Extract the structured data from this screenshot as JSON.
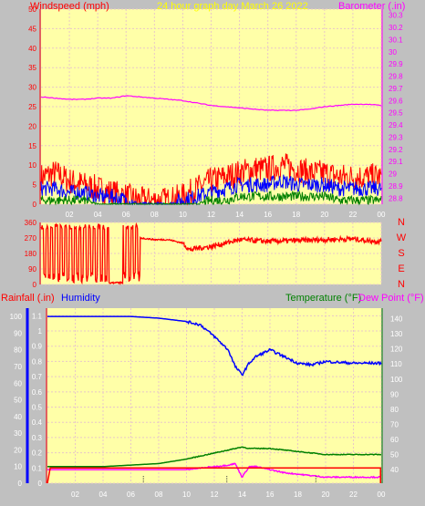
{
  "header": {
    "left_label": "Windspeed (mph)",
    "center_label": "24 hour graph day   March 26 2022",
    "right_label": "Barometer (.in)"
  },
  "colors": {
    "background": "#c0c0c0",
    "plot_bg": "#ffffa8",
    "grid": "#e8c8c8",
    "wind_speed": "#ff0000",
    "wind_avg": "#0000ff",
    "wind_min": "#008000",
    "barometer": "#ff00ff",
    "direction": "#ff0000",
    "humidity": "#0000ff",
    "temperature": "#008000",
    "dewpoint": "#ff00ff",
    "rainfall": "#ff0000",
    "title_yellow": "#ffff00",
    "axis_labels": "#ffffff"
  },
  "x_ticks": [
    "02",
    "04",
    "06",
    "08",
    "10",
    "12",
    "14",
    "16",
    "18",
    "20",
    "22",
    "00"
  ],
  "direction_letters": [
    "N",
    "W",
    "S",
    "E",
    "N"
  ],
  "bottom_header": {
    "rainfall_label": "Rainfall (.in)",
    "humidity_label": "Humidity",
    "temperature_label": "Temperature (°F)",
    "dewpoint_label": "Dew Point (°F)"
  },
  "chart_data": [
    {
      "type": "line",
      "id": "wind-barometer",
      "xlabel": "",
      "ylabel_left": "Windspeed (mph)",
      "ylabel_right": "Barometer (.in)",
      "y_left_ticks": [
        "0",
        "5",
        "10",
        "15",
        "20",
        "25",
        "30",
        "35",
        "40",
        "45",
        "50"
      ],
      "y_left_lim": [
        0,
        50
      ],
      "y_right_ticks": [
        "28.8",
        "28.9",
        "29",
        "29.1",
        "29.2",
        "29.3",
        "29.4",
        "29.5",
        "29.6",
        "29.7",
        "29.8",
        "29.9",
        "30",
        "30.1",
        "30.2",
        "30.3"
      ],
      "y_right_lim": [
        28.75,
        30.35
      ],
      "x_hours": [
        0,
        1,
        2,
        3,
        4,
        5,
        6,
        7,
        8,
        9,
        10,
        11,
        12,
        13,
        14,
        15,
        16,
        17,
        18,
        19,
        20,
        21,
        22,
        23,
        24
      ],
      "series": [
        {
          "name": "Windspeed",
          "axis": "left",
          "values": [
            7,
            8,
            6,
            5,
            4,
            3,
            2,
            1,
            1,
            1,
            2,
            4,
            6,
            7,
            8,
            9,
            9,
            10,
            9,
            8,
            8,
            7,
            7,
            7,
            7
          ]
        },
        {
          "name": "Wind average",
          "axis": "left",
          "values": [
            4,
            4,
            3,
            3,
            2,
            2,
            1,
            0,
            0,
            0,
            1,
            2,
            3,
            4,
            5,
            5,
            5,
            6,
            5,
            5,
            5,
            4,
            4,
            4,
            4
          ]
        },
        {
          "name": "Wind minimum",
          "axis": "left",
          "values": [
            1,
            1,
            1,
            1,
            0,
            0,
            0,
            0,
            0,
            0,
            0,
            0,
            1,
            1,
            2,
            2,
            2,
            2,
            2,
            2,
            2,
            1,
            1,
            1,
            1
          ]
        },
        {
          "name": "Barometer",
          "axis": "right",
          "values": [
            29.63,
            29.62,
            29.61,
            29.61,
            29.62,
            29.62,
            29.64,
            29.63,
            29.62,
            29.61,
            29.6,
            29.58,
            29.56,
            29.55,
            29.54,
            29.53,
            29.52,
            29.52,
            29.52,
            29.53,
            29.55,
            29.56,
            29.57,
            29.57,
            29.56
          ]
        }
      ]
    },
    {
      "type": "line",
      "id": "wind-direction",
      "ylabel_left": "",
      "y_left_ticks": [
        "0",
        "90",
        "180",
        "270",
        "360"
      ],
      "y_left_lim": [
        0,
        360
      ],
      "x_hours": [
        0,
        0.5,
        1,
        1.5,
        2,
        2.5,
        3,
        3.5,
        4,
        4.5,
        5,
        5.5,
        6,
        6.5,
        7,
        8,
        9,
        10,
        10.5,
        11,
        12,
        13,
        14,
        16,
        18,
        20,
        22,
        23,
        24
      ],
      "series": [
        {
          "name": "Wind direction",
          "values": [
            60,
            330,
            40,
            320,
            30,
            330,
            320,
            300,
            330,
            300,
            10,
            330,
            5,
            330,
            270,
            260,
            260,
            240,
            200,
            210,
            220,
            240,
            260,
            250,
            255,
            260,
            265,
            255,
            250
          ]
        }
      ]
    },
    {
      "type": "line",
      "id": "humidity-temperature-rain",
      "y_left_inner_ticks": [
        "0",
        "0.1",
        "0.2",
        "0.3",
        "0.4",
        "0.5",
        "0.6",
        "0.7",
        "0.8",
        "0.9",
        "1",
        "1.1"
      ],
      "y_left_inner_lim": [
        0,
        1.15
      ],
      "y_left_outer_ticks": [
        "0",
        "10",
        "20",
        "30",
        "40",
        "50",
        "60",
        "70",
        "80",
        "90",
        "100"
      ],
      "y_left_outer_lim": [
        0,
        105
      ],
      "y_right_ticks": [
        "40",
        "50",
        "60",
        "70",
        "80",
        "90",
        "100",
        "110",
        "120",
        "130",
        "140"
      ],
      "y_right_lim": [
        31,
        147
      ],
      "x_hours": [
        0,
        2,
        4,
        6,
        8,
        10,
        11,
        12,
        13,
        13.5,
        14,
        14.5,
        15,
        16,
        17,
        18,
        19,
        20,
        22,
        24
      ],
      "series": [
        {
          "name": "Humidity",
          "axis": "outer-left",
          "values": [
            100,
            100,
            100,
            100,
            99,
            97,
            95,
            88,
            80,
            70,
            65,
            72,
            76,
            80,
            76,
            72,
            71,
            73,
            72,
            72
          ]
        },
        {
          "name": "Temperature",
          "axis": "right",
          "values": [
            42,
            42,
            42,
            43,
            44,
            47,
            49,
            51,
            53,
            54,
            55,
            54,
            54,
            54,
            53,
            52,
            51,
            50,
            50,
            50
          ]
        },
        {
          "name": "Dew Point",
          "axis": "right",
          "values": [
            40,
            40,
            40,
            40,
            40,
            40,
            41,
            42,
            43,
            44,
            35,
            42,
            42,
            40,
            38,
            37,
            36,
            35,
            35,
            35
          ]
        },
        {
          "name": "Rainfall",
          "axis": "inner-left",
          "values": [
            0.1,
            0.1,
            0.1,
            0.1,
            0.1,
            0.1,
            0.1,
            0.1,
            0.1,
            0.1,
            0.1,
            0.1,
            0.1,
            0.1,
            0.1,
            0.1,
            0.1,
            0.1,
            0.1,
            0.0
          ]
        }
      ]
    }
  ]
}
